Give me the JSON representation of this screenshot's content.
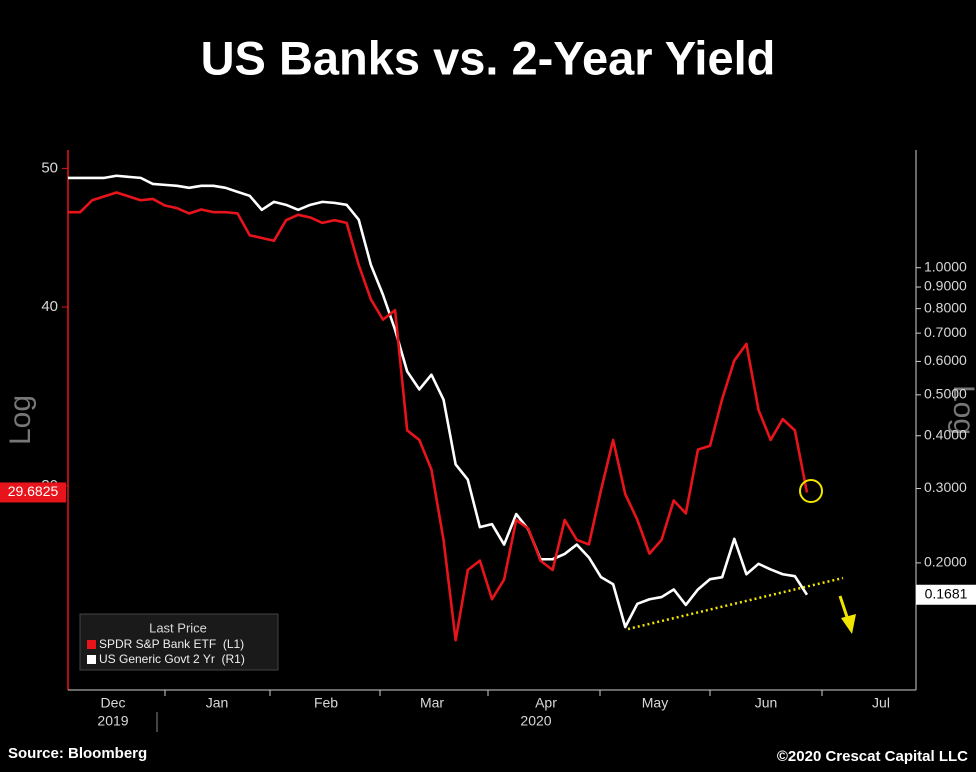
{
  "chart_data": {
    "type": "line",
    "title": "US Banks vs. 2-Year Yield",
    "y_label": "Log",
    "y2_label": "Log",
    "log_scale": true,
    "x_labels": [
      "Dec",
      "Jan",
      "Feb",
      "Mar",
      "Apr",
      "May",
      "Jun",
      "Jul"
    ],
    "year_labels": [
      "2019",
      "2020"
    ],
    "ylim": [
      21.6,
      51.5
    ],
    "yticks": [
      30,
      40,
      50
    ],
    "y2lim": [
      0.1,
      1.9
    ],
    "y2ticks": [
      {
        "value": 1.0,
        "label": "1.0000"
      },
      {
        "value": 0.9,
        "label": "0.9000"
      },
      {
        "value": 0.8,
        "label": "0.8000"
      },
      {
        "value": 0.7,
        "label": "0.7000"
      },
      {
        "value": 0.6,
        "label": "0.6000"
      },
      {
        "value": 0.5,
        "label": "0.5000"
      },
      {
        "value": 0.4,
        "label": "0.4000"
      },
      {
        "value": 0.3,
        "label": "0.3000"
      },
      {
        "value": 0.2,
        "label": "0.2000"
      }
    ],
    "legend_title": "Last Price",
    "series": [
      {
        "name": "SPDR S&P Bank ETF  (L1)",
        "color": "#e8141b",
        "axis": "y",
        "last_price_label": "29.6825",
        "values": [
          46.6,
          46.6,
          47.5,
          47.8,
          48.1,
          47.8,
          47.5,
          47.6,
          47.1,
          46.9,
          46.5,
          46.8,
          46.6,
          46.6,
          46.5,
          44.9,
          44.7,
          44.5,
          46.0,
          46.4,
          46.2,
          45.8,
          46.0,
          45.8,
          42.8,
          40.5,
          39.2,
          39.8,
          32.8,
          32.3,
          30.8,
          27.5,
          23.4,
          26.2,
          26.6,
          25.0,
          25.8,
          28.4,
          28.0,
          26.6,
          26.2,
          28.4,
          27.5,
          27.3,
          29.8,
          32.3,
          29.6,
          28.4,
          26.9,
          27.5,
          29.3,
          28.7,
          31.8,
          32.0,
          34.5,
          36.7,
          37.7,
          33.9,
          32.3,
          33.4,
          32.8,
          29.6825,
          null,
          null,
          null,
          null,
          null,
          null,
          null,
          null,
          null
        ]
      },
      {
        "name": "US Generic Govt 2 Yr  (R1)",
        "color": "#ffffff",
        "axis": "y2",
        "last_price_label": "0.1681",
        "values": [
          1.632,
          1.632,
          1.632,
          1.632,
          1.651,
          1.641,
          1.632,
          1.579,
          1.571,
          1.563,
          1.546,
          1.563,
          1.563,
          1.546,
          1.512,
          1.48,
          1.371,
          1.432,
          1.409,
          1.371,
          1.409,
          1.432,
          1.424,
          1.409,
          1.299,
          1.016,
          0.863,
          0.713,
          0.568,
          0.515,
          0.558,
          0.487,
          0.342,
          0.315,
          0.243,
          0.247,
          0.221,
          0.261,
          0.24,
          0.204,
          0.204,
          0.21,
          0.221,
          0.206,
          0.185,
          0.178,
          0.141,
          0.16,
          0.164,
          0.166,
          0.173,
          0.159,
          0.173,
          0.183,
          0.185,
          0.228,
          0.188,
          0.199,
          0.193,
          0.188,
          0.186,
          0.1681,
          null,
          null,
          null,
          null,
          null,
          null,
          null,
          null,
          null
        ]
      }
    ],
    "source": "Source: Bloomberg",
    "copyright": "©2020 Crescat Capital LLC"
  }
}
